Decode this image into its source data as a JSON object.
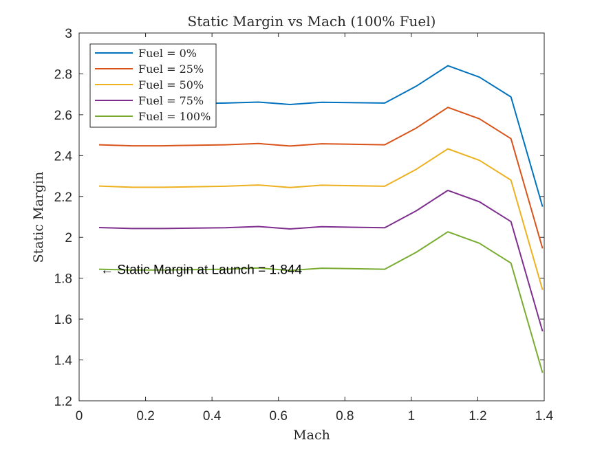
{
  "chart_data": {
    "type": "line",
    "title": "Static Margin vs Mach (100% Fuel)",
    "xlabel": "Mach",
    "ylabel": "Static Margin",
    "xlim": [
      0,
      1.4
    ],
    "ylim": [
      1.2,
      3.0
    ],
    "xticks": [
      0,
      0.2,
      0.4,
      0.6,
      0.8,
      1,
      1.2,
      1.4
    ],
    "xtick_labels": [
      "0",
      "0.2",
      "0.4",
      "0.6",
      "0.8",
      "1",
      "1.2",
      "1.4"
    ],
    "yticks": [
      1.2,
      1.4,
      1.6,
      1.8,
      2,
      2.2,
      2.4,
      2.6,
      2.8,
      3
    ],
    "ytick_labels": [
      "1.2",
      "1.4",
      "1.6",
      "1.8",
      "2",
      "2.2",
      "2.4",
      "2.6",
      "2.8",
      "3"
    ],
    "grid": false,
    "legend_position": "top-left",
    "x": [
      0.06,
      0.16,
      0.25,
      0.44,
      0.54,
      0.635,
      0.73,
      0.92,
      1.015,
      1.11,
      1.205,
      1.3,
      1.395
    ],
    "series": [
      {
        "name": "Fuel = 0%",
        "color": "#0072BD",
        "values": [
          2.657,
          2.652,
          2.652,
          2.657,
          2.662,
          2.65,
          2.661,
          2.657,
          2.74,
          2.84,
          2.784,
          2.687,
          2.15
        ]
      },
      {
        "name": "Fuel = 25%",
        "color": "#D95319",
        "values": [
          2.453,
          2.448,
          2.448,
          2.453,
          2.459,
          2.447,
          2.458,
          2.453,
          2.535,
          2.636,
          2.58,
          2.483,
          1.946
        ]
      },
      {
        "name": "Fuel = 50%",
        "color": "#EDB120",
        "values": [
          2.251,
          2.245,
          2.245,
          2.25,
          2.256,
          2.244,
          2.255,
          2.25,
          2.333,
          2.433,
          2.377,
          2.28,
          1.743
        ]
      },
      {
        "name": "Fuel = 75%",
        "color": "#7E2F8E",
        "values": [
          2.048,
          2.043,
          2.043,
          2.047,
          2.053,
          2.041,
          2.052,
          2.047,
          2.13,
          2.23,
          2.174,
          2.077,
          1.54
        ]
      },
      {
        "name": "Fuel = 100%",
        "color": "#77AC30",
        "values": [
          1.844,
          1.84,
          1.84,
          1.844,
          1.85,
          1.838,
          1.849,
          1.844,
          1.927,
          2.027,
          1.971,
          1.874,
          1.337
        ]
      }
    ],
    "annotations": [
      {
        "text": "← Static Margin at Launch = 1.844",
        "x": 0.06,
        "y": 1.844
      }
    ]
  }
}
